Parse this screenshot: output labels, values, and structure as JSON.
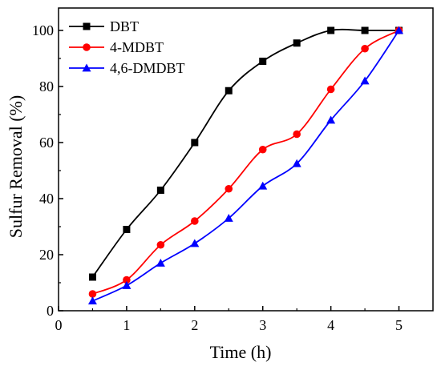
{
  "chart_data": {
    "type": "line",
    "xlabel": "Time (h)",
    "ylabel": "Sulfur Removal (%)",
    "xlim": [
      0,
      5.5
    ],
    "ylim": [
      0,
      108
    ],
    "xticks": [
      0,
      1,
      2,
      3,
      4,
      5
    ],
    "yticks": [
      0,
      20,
      40,
      60,
      80,
      100
    ],
    "grid": false,
    "legend_position": "top-left",
    "x": [
      0.5,
      1,
      1.5,
      2,
      2.5,
      3,
      3.5,
      4,
      4.5,
      5
    ],
    "series": [
      {
        "name": "DBT",
        "color": "#000000",
        "marker": "square",
        "values": [
          12,
          29,
          43,
          60,
          78.5,
          89,
          95.5,
          100,
          100,
          100
        ]
      },
      {
        "name": "4-MDBT",
        "color": "#ff0000",
        "marker": "circle",
        "values": [
          6,
          11,
          23.5,
          32,
          43.5,
          57.5,
          63,
          79,
          93.5,
          100
        ]
      },
      {
        "name": "4,6-DMDBT",
        "color": "#0000ff",
        "marker": "triangle",
        "values": [
          3.5,
          9,
          17,
          24,
          33,
          44.5,
          52.5,
          68,
          82,
          100
        ]
      }
    ]
  }
}
